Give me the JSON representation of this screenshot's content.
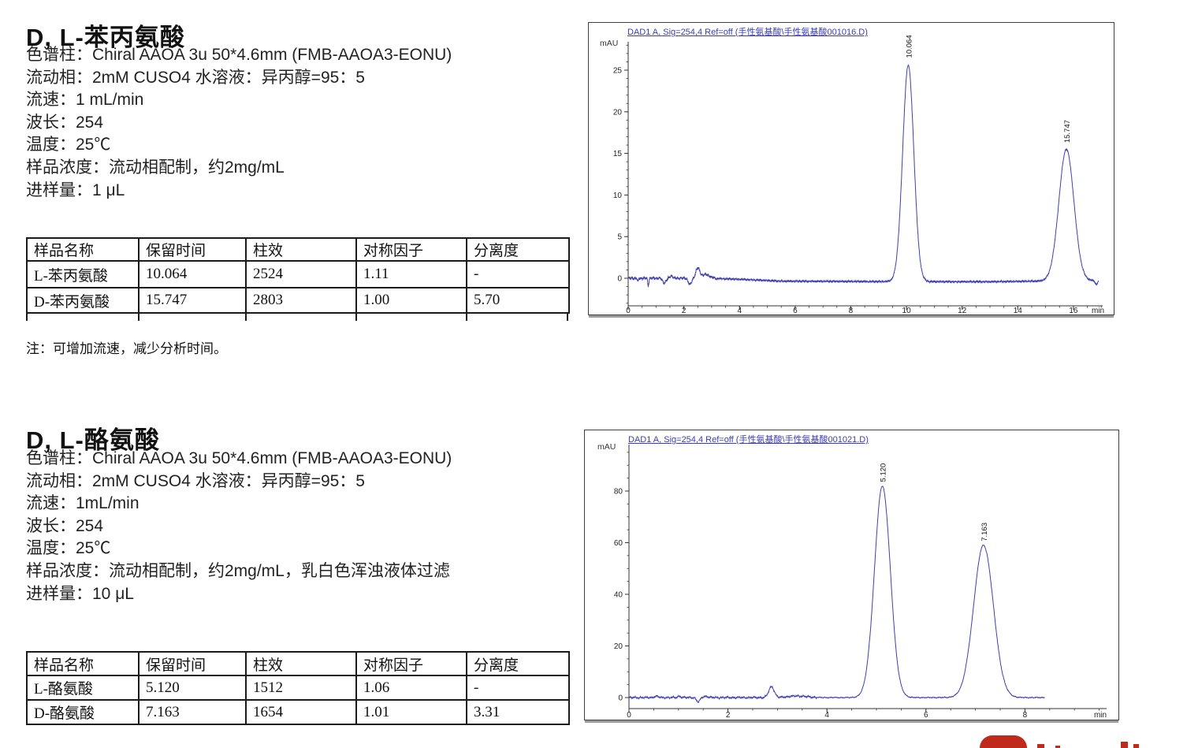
{
  "colors": {
    "trace": "#4040ae",
    "chart_title": "#3c3cb4",
    "logo_red": "#c02a1c",
    "table_border": "#1b1b1b"
  },
  "sections": [
    {
      "title": "D, L-苯丙氨酸",
      "lines": [
        "色谱柱：Chiral AAOA 3u 50*4.6mm (FMB-AAOA3-EONU)",
        "流动相：2mM CUSO4 水溶液：异丙醇=95：5",
        "流速：1 mL/min",
        "波长：254",
        "温度：25℃",
        "样品浓度：流动相配制，约2mg/mL",
        "进样量：1 μL"
      ],
      "table": {
        "headers": [
          "样品名称",
          "保留时间",
          "柱效",
          "对称因子",
          "分离度"
        ],
        "rows": [
          [
            "L-苯丙氨酸",
            "10.064",
            "2524",
            "1.11",
            "-"
          ],
          [
            "D-苯丙氨酸",
            "15.747",
            "2803",
            "1.00",
            "5.70"
          ]
        ]
      },
      "note": "注：可增加流速，减少分析时间。"
    },
    {
      "title": "D, L-酪氨酸",
      "lines": [
        "色谱柱：Chiral AAOA 3u 50*4.6mm (FMB-AAOA3-EONU)",
        "流动相：2mM CUSO4 水溶液：异丙醇=95：5",
        "流速：1mL/min",
        "波长：254",
        "温度：25℃",
        "样品浓度：流动相配制，约2mg/mL，乳白色浑浊液体过滤",
        "进样量：10 μL"
      ],
      "table": {
        "headers": [
          "样品名称",
          "保留时间",
          "柱效",
          "对称因子",
          "分离度"
        ],
        "rows": [
          [
            "L-酪氨酸",
            "5.120",
            "1512",
            "1.06",
            "-"
          ],
          [
            "D-酪氨酸",
            "7.163",
            "1654",
            "1.01",
            "3.31"
          ]
        ]
      }
    }
  ],
  "chart_data": [
    {
      "type": "line",
      "title": "DAD1 A, Sig=254,4 Ref=off (手性氨基酸\\手性氨基酸001016.D)",
      "ylabel": "mAU",
      "xlabel": "min",
      "x_ticks": [
        0,
        2,
        4,
        6,
        8,
        10,
        12,
        14,
        16
      ],
      "y_ticks": [
        0,
        5,
        10,
        15,
        20,
        25
      ],
      "x_minor_step": 0.5,
      "y_minor_step": 1,
      "xlim": [
        0,
        17.05
      ],
      "ylim": [
        -3.3,
        28.4
      ],
      "trace_end": 16.9,
      "peaks": [
        {
          "rt": 10.064,
          "height": 26.0,
          "sigma": 0.2,
          "label": "10.064"
        },
        {
          "rt": 15.747,
          "height": 15.8,
          "sigma": 0.27,
          "label": "15.747"
        }
      ],
      "artifacts": [
        {
          "t": 0.35,
          "h": -0.4,
          "w": 0.02
        },
        {
          "t": 0.72,
          "h": -0.9,
          "w": 0.02
        },
        {
          "t": 1.3,
          "h": -0.55,
          "w": 0.06
        },
        {
          "t": 1.55,
          "h": 0.3,
          "w": 0.05
        },
        {
          "t": 2.22,
          "h": -0.75,
          "w": 0.06
        },
        {
          "t": 2.5,
          "h": 1.2,
          "w": 0.07
        },
        {
          "t": 2.78,
          "h": 0.45,
          "w": 0.14
        },
        {
          "t": 16.82,
          "h": -0.45,
          "w": 0.04
        }
      ],
      "baseline": [
        [
          0,
          0
        ],
        [
          2.9,
          0
        ],
        [
          4.2,
          -0.15
        ],
        [
          5.5,
          -0.35
        ],
        [
          9.0,
          -0.4
        ],
        [
          13,
          -0.42
        ],
        [
          15.9,
          -0.3
        ],
        [
          16.9,
          -0.3
        ]
      ],
      "noise_amp": 0.08,
      "noisy_until": 3.2,
      "legend": "none",
      "grid": false
    },
    {
      "type": "line",
      "title": "DAD1 A, Sig=254,4 Ref=off (手性氨基酸\\手性氨基酸001021.D)",
      "ylabel": "mAU",
      "xlabel": "min",
      "x_ticks": [
        0,
        2,
        4,
        6,
        8
      ],
      "y_ticks": [
        0,
        20,
        40,
        60,
        80
      ],
      "x_minor_step": 0.5,
      "y_minor_step": 5,
      "xlim": [
        0,
        9.65
      ],
      "ylim": [
        -4.3,
        98
      ],
      "trace_end": 8.4,
      "peaks": [
        {
          "rt": 5.12,
          "height": 82.0,
          "sigma": 0.16,
          "label": "5.120"
        },
        {
          "rt": 7.163,
          "height": 59.0,
          "sigma": 0.2,
          "label": "7.163"
        }
      ],
      "artifacts": [
        {
          "t": 0.55,
          "h": 0.5,
          "w": 0.04
        },
        {
          "t": 1.02,
          "h": 0.5,
          "w": 0.03
        },
        {
          "t": 1.4,
          "h": -1.7,
          "w": 0.035
        },
        {
          "t": 1.55,
          "h": 0.45,
          "w": 0.05
        },
        {
          "t": 2.88,
          "h": 4.2,
          "w": 0.055
        },
        {
          "t": 3.4,
          "h": 0.6,
          "w": 0.18
        }
      ],
      "baseline": [
        [
          0,
          0
        ],
        [
          8.4,
          0
        ]
      ],
      "noise_amp": 0.18,
      "noisy_until": 3.8,
      "legend": "none",
      "grid": false
    }
  ]
}
